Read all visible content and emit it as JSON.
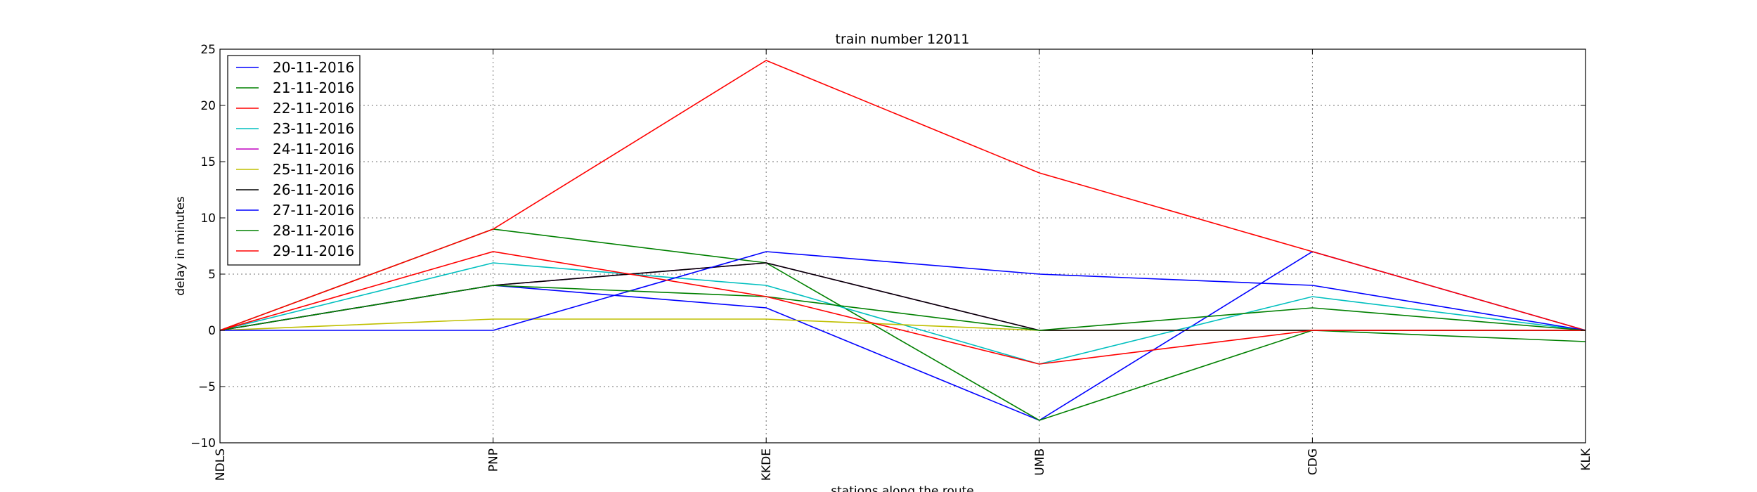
{
  "chart_data": {
    "type": "line",
    "title": "train number 12011",
    "xlabel": "stations along the route",
    "ylabel": "delay in minutes",
    "categories": [
      "NDLS",
      "PNP",
      "KKDE",
      "UMB",
      "CDG",
      "KLK"
    ],
    "ylim": [
      -10,
      25
    ],
    "yticks": [
      -10,
      -5,
      0,
      5,
      10,
      15,
      20,
      25
    ],
    "grid": true,
    "legend_position": "top-left",
    "series": [
      {
        "name": "20-11-2016",
        "color": "#0000ff",
        "values": [
          0,
          4,
          2,
          -8,
          7,
          0
        ]
      },
      {
        "name": "21-11-2016",
        "color": "#008000",
        "values": [
          0,
          9,
          6,
          -8,
          0,
          -1
        ]
      },
      {
        "name": "22-11-2016",
        "color": "#ff0000",
        "values": [
          0,
          9,
          24,
          14,
          7,
          0
        ]
      },
      {
        "name": "23-11-2016",
        "color": "#00bfbf",
        "values": [
          0,
          6,
          4,
          -3,
          3,
          0
        ]
      },
      {
        "name": "24-11-2016",
        "color": "#bf00bf",
        "values": [
          0,
          4,
          6,
          0,
          0,
          0
        ]
      },
      {
        "name": "25-11-2016",
        "color": "#bfbf00",
        "values": [
          0,
          1,
          1,
          0,
          0,
          0
        ]
      },
      {
        "name": "26-11-2016",
        "color": "#000000",
        "values": [
          0,
          4,
          6,
          0,
          0,
          0
        ]
      },
      {
        "name": "27-11-2016",
        "color": "#0000ff",
        "values": [
          0,
          0,
          7,
          5,
          4,
          0
        ]
      },
      {
        "name": "28-11-2016",
        "color": "#008000",
        "values": [
          0,
          4,
          3,
          0,
          2,
          0
        ]
      },
      {
        "name": "29-11-2016",
        "color": "#ff0000",
        "values": [
          0,
          7,
          3,
          -3,
          0,
          0
        ]
      }
    ]
  }
}
